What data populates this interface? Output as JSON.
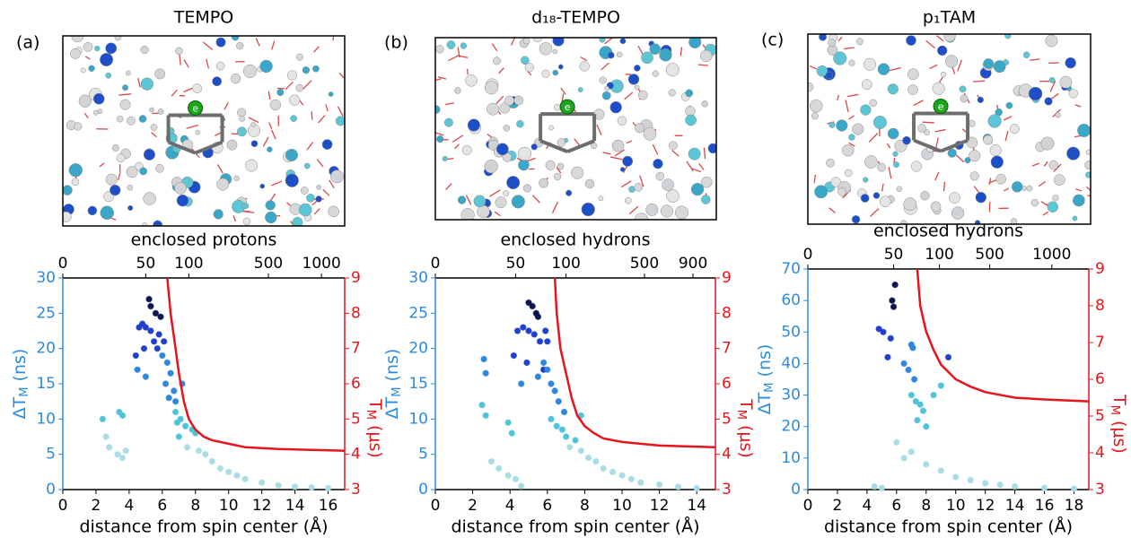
{
  "chart_data": [
    {
      "type": "scatter",
      "title": "TEMPO",
      "panel_label": "(a)",
      "image_label": "e",
      "top_label": "enclosed protons",
      "xlabel": "distance from spin center (Å)",
      "ylabel": "ΔT",
      "ylabel_sub": "M",
      "ylabel_unit": " (ns)",
      "y2label": "T",
      "y2label_sub": "M",
      "y2label_unit": " (μs)",
      "xlim": [
        0,
        17
      ],
      "xticks": [
        0,
        2,
        4,
        6,
        8,
        10,
        12,
        14,
        16
      ],
      "ylim": [
        0,
        30
      ],
      "yticks": [
        0,
        5,
        10,
        15,
        20,
        25,
        30
      ],
      "y2lim": [
        3,
        9
      ],
      "y2ticks": [
        3,
        4,
        5,
        6,
        7,
        8,
        9
      ],
      "x2ticks": [
        0,
        {
          "value": 5.0,
          "label": "50"
        },
        {
          "value": 7.6,
          "label": "100"
        },
        {
          "value": 12.4,
          "label": "500"
        },
        {
          "value": 15.6,
          "label": "1000"
        }
      ],
      "groups": [
        {
          "color": "#0b1650",
          "x": [
            5.2,
            5.3,
            5.6,
            5.9
          ],
          "y": [
            27,
            26,
            25,
            24.5
          ]
        },
        {
          "color": "#1f3fcf",
          "x": [
            4.6,
            4.8,
            5.0,
            5.3,
            5.5,
            5.8,
            6.1,
            4.4,
            4.9,
            5.7
          ],
          "y": [
            23,
            23.5,
            23,
            22.5,
            21,
            22,
            21,
            19,
            20,
            20
          ]
        },
        {
          "color": "#2f86e0",
          "x": [
            4.5,
            5.0,
            6.0,
            6.3,
            6.5,
            6.2,
            6.7,
            6.4,
            6.8,
            7.2
          ],
          "y": [
            17,
            16,
            19,
            18,
            16.5,
            15,
            14,
            13,
            12.5,
            15
          ]
        },
        {
          "color": "#4fc4d8",
          "x": [
            2.4,
            3.4,
            3.6,
            6.8,
            7.1,
            7.4,
            7.8,
            7.0,
            8.0,
            6.9
          ],
          "y": [
            10,
            11,
            10.5,
            11,
            10,
            9,
            8.5,
            7.5,
            8,
            9.5
          ]
        },
        {
          "color": "#a8dde6",
          "x": [
            2.6,
            2.8,
            3.3,
            3.6,
            3.8,
            7.5,
            8.2,
            8.6,
            9.0,
            9.5,
            10.0,
            10.5,
            11.0,
            12.0,
            13.0,
            14.0,
            15.0,
            16.0
          ],
          "y": [
            7.5,
            6,
            5,
            4.5,
            5.5,
            6,
            5.5,
            5,
            4,
            3,
            2.5,
            2,
            1.5,
            1,
            0.6,
            0.4,
            0.3,
            0.2
          ]
        }
      ],
      "line": {
        "color": "#e8141b",
        "axis": "y2",
        "x": [
          6.3,
          6.5,
          6.8,
          7.0,
          7.3,
          7.6,
          8.0,
          8.5,
          9.0,
          10.0,
          11.0,
          13.0,
          17.0
        ],
        "y": [
          9,
          8,
          7,
          6.3,
          5.5,
          5.0,
          4.7,
          4.5,
          4.4,
          4.3,
          4.2,
          4.15,
          4.1
        ]
      }
    },
    {
      "type": "scatter",
      "title": "d₁₈-TEMPO",
      "panel_label": "(b)",
      "image_label": "e",
      "top_label": "enclosed hydrons",
      "xlabel": "distance from spin center (Å)",
      "ylabel": "ΔT",
      "ylabel_sub": "M",
      "ylabel_unit": " (ns)",
      "y2label": "T",
      "y2label_sub": "M",
      "y2label_unit": " (μs)",
      "xlim": [
        0,
        15
      ],
      "xticks": [
        0,
        2,
        4,
        6,
        8,
        10,
        12,
        14
      ],
      "ylim": [
        0,
        30
      ],
      "yticks": [
        0,
        5,
        10,
        15,
        20,
        25,
        30
      ],
      "y2lim": [
        3,
        9
      ],
      "y2ticks": [
        3,
        4,
        5,
        6,
        7,
        8,
        9
      ],
      "x2ticks": [
        0,
        {
          "value": 4.3,
          "label": "50"
        },
        {
          "value": 7.0,
          "label": "100"
        },
        {
          "value": 11.2,
          "label": "500"
        },
        {
          "value": 13.8,
          "label": "900"
        }
      ],
      "groups": [
        {
          "color": "#0b1650",
          "x": [
            5.0,
            5.2,
            5.4,
            5.5
          ],
          "y": [
            26.5,
            26,
            25,
            24.5
          ]
        },
        {
          "color": "#1f3fcf",
          "x": [
            4.4,
            4.7,
            5.0,
            5.3,
            5.6,
            5.9,
            6.0,
            4.2,
            4.9,
            5.8
          ],
          "y": [
            22.5,
            23,
            22.5,
            22,
            21,
            22.5,
            21,
            19,
            18,
            17
          ]
        },
        {
          "color": "#2f86e0",
          "x": [
            2.6,
            2.7,
            4.6,
            5.5,
            5.8,
            6.0,
            6.2,
            6.4,
            6.6,
            6.9
          ],
          "y": [
            18.5,
            16.5,
            15,
            16,
            18,
            17,
            15,
            14,
            12.5,
            11
          ]
        },
        {
          "color": "#4fc4d8",
          "x": [
            2.5,
            2.7,
            3.9,
            4.1,
            6.2,
            6.5,
            6.8,
            7.0,
            7.5,
            7.8
          ],
          "y": [
            12,
            10.5,
            9.5,
            8,
            10,
            9,
            8.5,
            7.5,
            7,
            10.5
          ]
        },
        {
          "color": "#a8dde6",
          "x": [
            3.0,
            3.4,
            3.9,
            4.3,
            4.6,
            7.2,
            7.8,
            8.2,
            8.6,
            9.0,
            9.5,
            10.0,
            10.5,
            11.0,
            12.0,
            13.0,
            14.0
          ],
          "y": [
            4,
            3,
            2,
            1.5,
            0.5,
            6,
            5.5,
            4.5,
            4,
            3,
            2.5,
            2,
            1.5,
            1,
            0.7,
            0.4,
            0.2
          ]
        }
      ],
      "line": {
        "color": "#e8141b",
        "axis": "y2",
        "x": [
          6.4,
          6.5,
          6.7,
          7.0,
          7.3,
          7.6,
          8.0,
          8.5,
          9.0,
          10.0,
          11.0,
          12.0,
          15.0
        ],
        "y": [
          9,
          8,
          7,
          6.3,
          5.6,
          5.1,
          4.8,
          4.6,
          4.45,
          4.35,
          4.3,
          4.25,
          4.2
        ]
      }
    },
    {
      "type": "scatter",
      "title": "p₁TAM",
      "panel_label": "(c)",
      "image_label": "e",
      "top_label": "enclosed hydrons",
      "xlabel": "distance from spin center (Å)",
      "ylabel": "ΔT",
      "ylabel_sub": "M",
      "ylabel_unit": " (ns)",
      "y2label": "T",
      "y2label_sub": "M",
      "y2label_unit": " (μs)",
      "xlim": [
        0,
        19
      ],
      "xticks": [
        0,
        2,
        4,
        6,
        8,
        10,
        12,
        14,
        16,
        18
      ],
      "ylim": [
        0,
        70
      ],
      "yticks": [
        0,
        10,
        20,
        30,
        40,
        50,
        60,
        70
      ],
      "y2lim": [
        3,
        9
      ],
      "y2ticks": [
        3,
        4,
        5,
        6,
        7,
        8,
        9
      ],
      "x2ticks": [
        0,
        {
          "value": 5.8,
          "label": "50"
        },
        {
          "value": 8.9,
          "label": "100"
        },
        {
          "value": 12.3,
          "label": "500"
        },
        {
          "value": 16.5,
          "label": "1000"
        }
      ],
      "groups": [
        {
          "color": "#0b1650",
          "x": [
            5.9,
            5.7,
            5.8
          ],
          "y": [
            65,
            60,
            58
          ]
        },
        {
          "color": "#1f3fcf",
          "x": [
            4.8,
            5.1,
            5.6,
            5.4,
            9.5
          ],
          "y": [
            51,
            50,
            48,
            42,
            42
          ]
        },
        {
          "color": "#2f86e0",
          "x": [
            6.5,
            7.0,
            7.1,
            6.8,
            7.2
          ],
          "y": [
            40,
            46,
            45,
            38,
            35
          ]
        },
        {
          "color": "#4fc4d8",
          "x": [
            7.0,
            7.3,
            7.6,
            7.8,
            7.4,
            8.0,
            8.5,
            9.0
          ],
          "y": [
            30,
            28,
            27,
            25,
            22,
            20,
            30,
            33
          ]
        },
        {
          "color": "#a8dde6",
          "x": [
            4.5,
            5.0,
            6.0,
            6.5,
            7.0,
            8.0,
            9.0,
            10.0,
            11.0,
            12.0,
            13.0,
            14.0,
            16.0,
            18.0
          ],
          "y": [
            1,
            0.5,
            15,
            10,
            12,
            8,
            6,
            4,
            3,
            2,
            1.5,
            1,
            0.5,
            0.3
          ]
        }
      ],
      "line": {
        "color": "#e8141b",
        "axis": "y2",
        "x": [
          7.4,
          7.6,
          8.0,
          8.5,
          9.0,
          10.0,
          11.0,
          12.0,
          14.0,
          16.0,
          19.0
        ],
        "y": [
          9,
          8,
          7.3,
          6.8,
          6.4,
          6.0,
          5.8,
          5.65,
          5.5,
          5.45,
          5.4
        ]
      }
    }
  ]
}
